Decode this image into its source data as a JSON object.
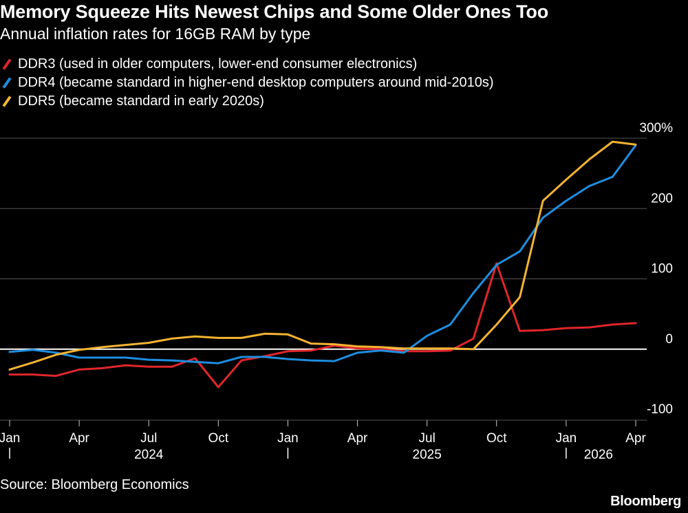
{
  "title": "Memory Squeeze Hits Newest Chips and Some Older Ones Too",
  "subtitle": "Annual inflation rates for 16GB RAM by type",
  "source": "Source: Bloomberg Economics",
  "brand": "Bloomberg",
  "colors": {
    "ddr3": "#e0262b",
    "ddr4": "#1e8ee0",
    "ddr5": "#f5b431",
    "grid": "#555555",
    "zero": "#ffffff"
  },
  "legend": [
    {
      "label": "DDR3 (used in older computers, lower-end consumer electronics)",
      "color": "#e0262b"
    },
    {
      "label": "DDR4 (became standard in higher-end desktop computers around mid-2010s)",
      "color": "#1e8ee0"
    },
    {
      "label": "DDR5 (became standard in early 2020s)",
      "color": "#f5b431"
    }
  ],
  "chart_data": {
    "type": "line",
    "x": [
      "2024-01",
      "2024-02",
      "2024-03",
      "2024-04",
      "2024-05",
      "2024-06",
      "2024-07",
      "2024-08",
      "2024-09",
      "2024-10",
      "2024-11",
      "2024-12",
      "2025-01",
      "2025-02",
      "2025-03",
      "2025-04",
      "2025-05",
      "2025-06",
      "2025-07",
      "2025-08",
      "2025-09",
      "2025-10",
      "2025-11",
      "2025-12",
      "2026-01",
      "2026-02",
      "2026-03",
      "2026-04"
    ],
    "series": [
      {
        "name": "DDR3 (used in older computers, lower-end consumer electronics)",
        "color": "#e0262b",
        "values": [
          -36,
          -36,
          -38,
          -29,
          -27,
          -23,
          -25,
          -25,
          -13,
          -54,
          -16,
          -10,
          -3,
          -2,
          5,
          1,
          0,
          -3,
          -3,
          -2,
          15,
          122,
          26,
          27,
          30,
          31,
          35,
          37
        ]
      },
      {
        "name": "DDR4 (became standard in higher-end desktop computers around mid-2010s)",
        "color": "#1e8ee0",
        "values": [
          -4,
          -1,
          -5,
          -12,
          -12,
          -12,
          -15,
          -16,
          -18,
          -20,
          -11,
          -11,
          -14,
          -16,
          -17,
          -5,
          -2,
          -5,
          19,
          35,
          80,
          120,
          139,
          187,
          211,
          232,
          245,
          290
        ]
      },
      {
        "name": "DDR5 (became standard in early 2020s)",
        "color": "#f5b431",
        "values": [
          -29,
          -19,
          -8,
          -1,
          3,
          6,
          9,
          15,
          18,
          16,
          16,
          22,
          21,
          8,
          7,
          4,
          3,
          1,
          1,
          1,
          0,
          35,
          74,
          211,
          241,
          270,
          295,
          291
        ]
      }
    ],
    "ylim": [
      -100,
      300
    ],
    "yticks": [
      -100,
      0,
      100,
      200,
      300
    ],
    "ytick_labels": [
      "-100",
      "0",
      "100",
      "200",
      "300%"
    ],
    "xtick_labels": [
      {
        "label": "Jan",
        "index": 0
      },
      {
        "label": "Apr",
        "index": 3
      },
      {
        "label": "Jul",
        "index": 6
      },
      {
        "label": "Oct",
        "index": 9
      },
      {
        "label": "Jan",
        "index": 12
      },
      {
        "label": "Apr",
        "index": 15
      },
      {
        "label": "Jul",
        "index": 18
      },
      {
        "label": "Oct",
        "index": 21
      },
      {
        "label": "Jan",
        "index": 24
      },
      {
        "label": "Apr",
        "index": 27
      }
    ],
    "year_labels": [
      {
        "label": "2024",
        "start": 0
      },
      {
        "label": "2025",
        "start": 12
      },
      {
        "label": "2026",
        "start": 24
      }
    ],
    "grid": true,
    "legend_position": "top-left"
  }
}
